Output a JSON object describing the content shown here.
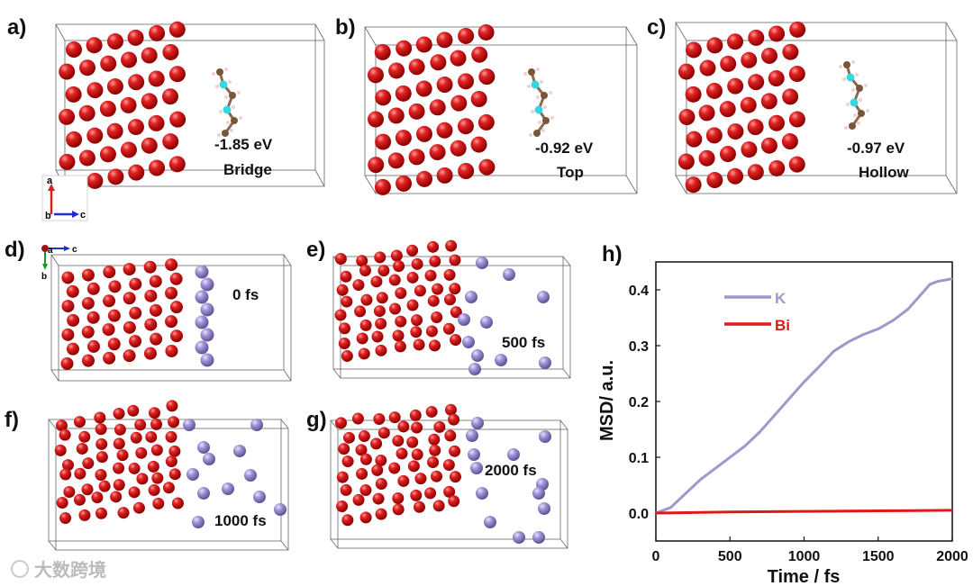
{
  "colors": {
    "bi_atom": "#d81a1a",
    "k_atom": "#9b8fcf",
    "k_line": "#9c99cc",
    "bi_line": "#e01818",
    "axis_a": "#d42020",
    "axis_b": "#1a9a1a",
    "axis_c": "#1c2fd0"
  },
  "panels": [
    {
      "label": "a)",
      "energy": "-1.85 eV",
      "site": "Bridge"
    },
    {
      "label": "b)",
      "energy": "-0.92 eV",
      "site": "Top"
    },
    {
      "label": "c)",
      "energy": "-0.97 eV",
      "site": "Hollow"
    },
    {
      "label": "d)",
      "time": "0 fs"
    },
    {
      "label": "e)",
      "time": "500 fs"
    },
    {
      "label": "f)",
      "time": "1000 fs"
    },
    {
      "label": "g)",
      "time": "2000 fs"
    }
  ],
  "axes_indicator": {
    "a": "a",
    "b": "b",
    "c": "c"
  },
  "watermark": "大数跨境",
  "chart_data": {
    "type": "line",
    "panel_label": "h)",
    "xlabel": "Time / fs",
    "ylabel": "MSD/ a.u.",
    "xlim": [
      0,
      2000
    ],
    "ylim": [
      -0.05,
      0.45
    ],
    "xticks": [
      "0",
      "500",
      "1000",
      "1500",
      "2000"
    ],
    "yticks": [
      "0.0",
      "0.1",
      "0.2",
      "0.3",
      "0.4"
    ],
    "legend_position": "top-left",
    "series": [
      {
        "name": "K",
        "x": [
          0,
          100,
          200,
          300,
          400,
          500,
          600,
          700,
          800,
          900,
          1000,
          1100,
          1200,
          1300,
          1400,
          1500,
          1600,
          1700,
          1800,
          1850,
          1900,
          2000
        ],
        "y": [
          0,
          0.01,
          0.035,
          0.06,
          0.08,
          0.1,
          0.12,
          0.145,
          0.175,
          0.205,
          0.235,
          0.262,
          0.29,
          0.307,
          0.32,
          0.33,
          0.345,
          0.365,
          0.395,
          0.41,
          0.415,
          0.42
        ]
      },
      {
        "name": "Bi",
        "x": [
          0,
          500,
          1000,
          1500,
          2000
        ],
        "y": [
          0,
          0.002,
          0.003,
          0.004,
          0.005
        ]
      }
    ]
  }
}
